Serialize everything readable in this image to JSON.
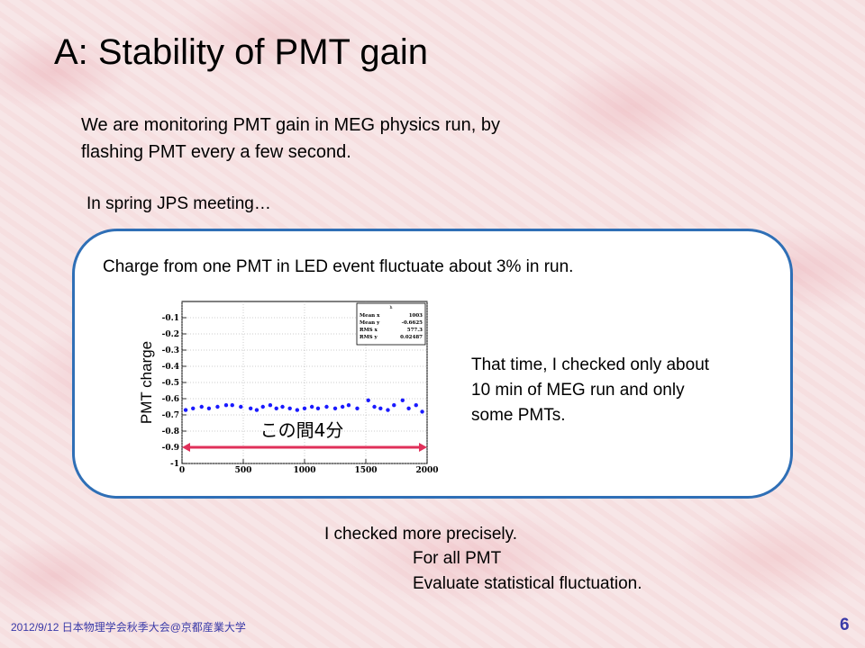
{
  "slide": {
    "title": "A: Stability of PMT gain",
    "intro_line1": "We are monitoring PMT gain in MEG physics run, by",
    "intro_line2": "flashing PMT every a few second.",
    "spring_note": "In spring JPS meeting…",
    "panel_heading": "Charge from one PMT in LED event fluctuate about 3% in run.",
    "side_note_line1": "That time, I checked only about",
    "side_note_line2": "10 min of MEG run and only",
    "side_note_line3": "some PMTs.",
    "closing_line1": "I checked more precisely.",
    "closing_line2": "For all PMT",
    "closing_line3": "Evaluate statistical fluctuation.",
    "footer": "2012/9/12 日本物理学会秋季大会@京都産業大学",
    "page_number": "6"
  },
  "colors": {
    "panel_border": "#2f6fb6",
    "markers": "#1a1aff",
    "arrow": "#e0305a",
    "footer_text": "#3a3aa8"
  },
  "chart_data": {
    "type": "scatter",
    "ylabel": "PMT charge",
    "xlabel": "",
    "xlim": [
      0,
      2000
    ],
    "ylim": [
      -1.0,
      0
    ],
    "x_ticks": [
      "0",
      "500",
      "1000",
      "1500",
      "2000"
    ],
    "y_ticks": [
      "-0.1",
      "-0.2",
      "-0.3",
      "-0.4",
      "-0.5",
      "-0.6",
      "-0.7",
      "-0.8",
      "-0.9",
      "-1"
    ],
    "stats_box": {
      "name": "h",
      "rows": [
        [
          "Mean x",
          "1003"
        ],
        [
          "Mean y",
          "-0.6625"
        ],
        [
          "RMS x",
          "577.3"
        ],
        [
          "RMS y",
          "0.02487"
        ]
      ]
    },
    "annotation": "この間4分",
    "series": [
      {
        "points": [
          [
            30,
            -0.67
          ],
          [
            90,
            -0.66
          ],
          [
            160,
            -0.65
          ],
          [
            220,
            -0.66
          ],
          [
            290,
            -0.65
          ],
          [
            360,
            -0.64
          ],
          [
            410,
            -0.64
          ],
          [
            480,
            -0.65
          ],
          [
            560,
            -0.66
          ],
          [
            610,
            -0.67
          ],
          [
            660,
            -0.65
          ],
          [
            720,
            -0.64
          ],
          [
            770,
            -0.66
          ],
          [
            820,
            -0.65
          ],
          [
            880,
            -0.66
          ],
          [
            940,
            -0.67
          ],
          [
            1000,
            -0.66
          ],
          [
            1060,
            -0.65
          ],
          [
            1110,
            -0.66
          ],
          [
            1180,
            -0.65
          ],
          [
            1250,
            -0.66
          ],
          [
            1310,
            -0.65
          ],
          [
            1360,
            -0.64
          ],
          [
            1430,
            -0.66
          ],
          [
            1520,
            -0.61
          ],
          [
            1570,
            -0.65
          ],
          [
            1620,
            -0.66
          ],
          [
            1680,
            -0.67
          ],
          [
            1730,
            -0.64
          ],
          [
            1800,
            -0.61
          ],
          [
            1850,
            -0.66
          ],
          [
            1910,
            -0.64
          ],
          [
            1960,
            -0.68
          ]
        ]
      }
    ]
  }
}
